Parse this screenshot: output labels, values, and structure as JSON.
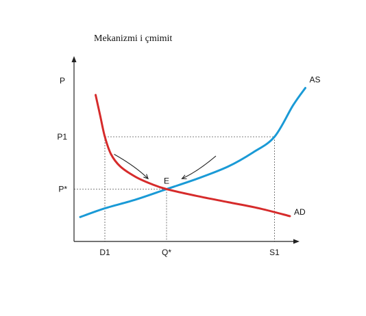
{
  "chart_data": {
    "type": "line",
    "title": "Mekanizmi i çmimit",
    "ylabel": "P",
    "xlabel": "",
    "x_ticks": [
      {
        "label": "D1",
        "x": 1.0
      },
      {
        "label": "Q*",
        "x": 3.0
      },
      {
        "label": "S1",
        "x": 6.5
      }
    ],
    "y_ticks": [
      {
        "label": "P1",
        "y": 6.0
      },
      {
        "label": "P*",
        "y": 3.0
      }
    ],
    "xlim": [
      -1.0,
      10.0
    ],
    "ylim": [
      0.0,
      11.0
    ],
    "series": [
      {
        "name": "AS",
        "color": "#1a9ad6",
        "x": [
          0.2,
          1.0,
          2.0,
          3.0,
          4.0,
          5.0,
          5.8,
          6.5,
          7.1,
          7.5
        ],
        "y": [
          1.4,
          1.9,
          2.4,
          3.0,
          3.6,
          4.3,
          5.1,
          6.0,
          7.8,
          8.8
        ]
      },
      {
        "name": "AD",
        "color": "#d62b2b",
        "x": [
          0.7,
          0.85,
          1.0,
          1.2,
          1.5,
          2.0,
          2.5,
          3.0,
          4.0,
          5.0,
          6.0,
          7.0
        ],
        "y": [
          8.4,
          7.2,
          6.0,
          5.0,
          4.3,
          3.7,
          3.3,
          3.0,
          2.6,
          2.25,
          1.9,
          1.45
        ]
      }
    ],
    "equilibrium": {
      "label": "E",
      "x": 3.0,
      "y": 3.0
    },
    "guides": [
      {
        "from": [
          1.0,
          6.0
        ],
        "to": [
          6.5,
          6.0
        ]
      },
      {
        "from": [
          1.0,
          6.0
        ],
        "to": [
          1.0,
          0.0
        ]
      },
      {
        "from": [
          6.5,
          6.0
        ],
        "to": [
          6.5,
          0.0
        ]
      },
      {
        "from": [
          0.0,
          3.0
        ],
        "to": [
          3.0,
          3.0
        ]
      },
      {
        "from": [
          3.0,
          3.0
        ],
        "to": [
          3.0,
          0.0
        ]
      }
    ],
    "arrows": [
      {
        "from": [
          1.3,
          5.0
        ],
        "via": [
          2.0,
          4.3
        ],
        "to": [
          2.4,
          3.6
        ]
      },
      {
        "from": [
          4.6,
          4.9
        ],
        "via": [
          4.0,
          4.0
        ],
        "to": [
          3.5,
          3.6
        ]
      }
    ]
  }
}
